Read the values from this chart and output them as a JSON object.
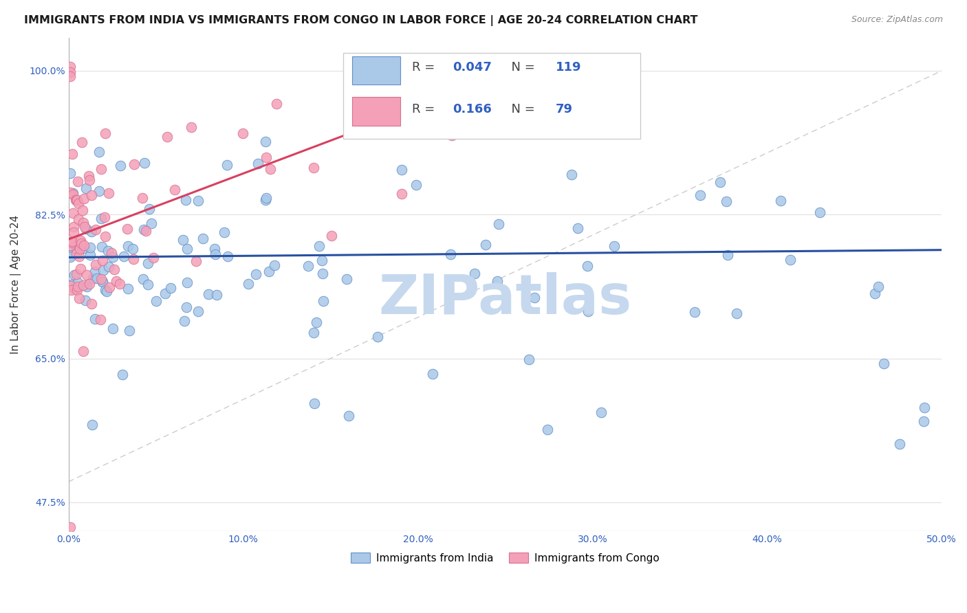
{
  "title": "IMMIGRANTS FROM INDIA VS IMMIGRANTS FROM CONGO IN LABOR FORCE | AGE 20-24 CORRELATION CHART",
  "source": "Source: ZipAtlas.com",
  "ylabel": "In Labor Force | Age 20-24",
  "xlim": [
    0.0,
    0.5
  ],
  "ylim": [
    0.44,
    1.04
  ],
  "ytick_labels": [
    0.475,
    0.65,
    0.825,
    1.0
  ],
  "xtick_labels": [
    0.0,
    0.1,
    0.2,
    0.3,
    0.4,
    0.5
  ],
  "R_india": 0.047,
  "N_india": 119,
  "R_congo": 0.166,
  "N_congo": 79,
  "india_color": "#aac8e8",
  "congo_color": "#f4a0b8",
  "india_line_color": "#2850a0",
  "congo_line_color": "#d84060",
  "india_dot_edge": "#6090c8",
  "congo_dot_edge": "#d87090",
  "watermark_text": "ZIPatlas",
  "watermark_color": "#c5d8ee",
  "background_color": "#ffffff",
  "grid_color": "#e0e0e0",
  "title_fontsize": 11.5,
  "axis_label_fontsize": 11,
  "tick_fontsize": 10,
  "tick_color": "#3060c0",
  "india_line_intercept": 0.773,
  "india_line_slope": 0.018,
  "congo_line_x0": 0.0,
  "congo_line_x1": 0.175,
  "congo_line_y0": 0.795,
  "congo_line_y1": 0.935
}
